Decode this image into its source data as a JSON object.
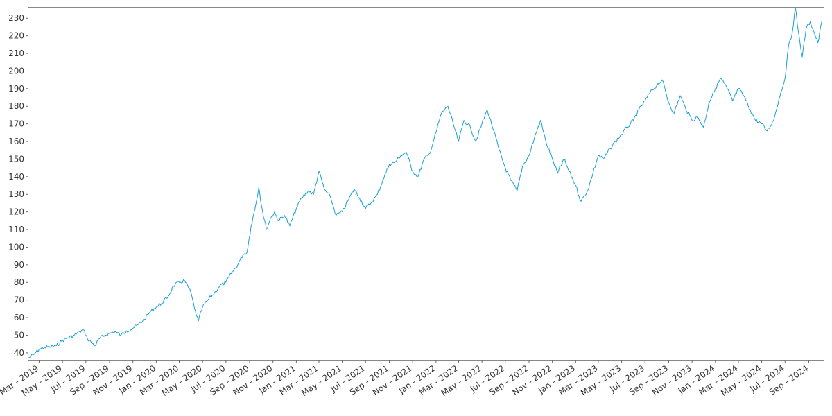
{
  "chart_data": {
    "type": "line",
    "title": "",
    "xlabel": "",
    "ylabel": "",
    "grid": false,
    "legend": "none",
    "line_color": "#1a9fd0",
    "xlim": [
      "2019-02-01",
      "2024-10-10"
    ],
    "ylim": [
      36,
      236
    ],
    "y_ticks": [
      40,
      50,
      60,
      70,
      80,
      90,
      100,
      110,
      120,
      130,
      140,
      150,
      160,
      170,
      180,
      190,
      200,
      210,
      220,
      230
    ],
    "x_ticks": [
      {
        "label": "Mar - 2019",
        "date": "2019-03-01"
      },
      {
        "label": "May - 2019",
        "date": "2019-05-01"
      },
      {
        "label": "Jul - 2019",
        "date": "2019-07-01"
      },
      {
        "label": "Sep - 2019",
        "date": "2019-09-01"
      },
      {
        "label": "Nov - 2019",
        "date": "2019-11-01"
      },
      {
        "label": "Jan - 2020",
        "date": "2020-01-01"
      },
      {
        "label": "Mar - 2020",
        "date": "2020-03-01"
      },
      {
        "label": "May - 2020",
        "date": "2020-05-01"
      },
      {
        "label": "Jul - 2020",
        "date": "2020-07-01"
      },
      {
        "label": "Sep - 2020",
        "date": "2020-09-01"
      },
      {
        "label": "Nov - 2020",
        "date": "2020-11-01"
      },
      {
        "label": "Jan - 2021",
        "date": "2021-01-01"
      },
      {
        "label": "Mar - 2021",
        "date": "2021-03-01"
      },
      {
        "label": "May - 2021",
        "date": "2021-05-01"
      },
      {
        "label": "Jul - 2021",
        "date": "2021-07-01"
      },
      {
        "label": "Sep - 2021",
        "date": "2021-09-01"
      },
      {
        "label": "Nov - 2021",
        "date": "2021-11-01"
      },
      {
        "label": "Jan - 2022",
        "date": "2022-01-01"
      },
      {
        "label": "Mar - 2022",
        "date": "2022-03-01"
      },
      {
        "label": "May - 2022",
        "date": "2022-05-01"
      },
      {
        "label": "Jul - 2022",
        "date": "2022-07-01"
      },
      {
        "label": "Sep - 2022",
        "date": "2022-09-01"
      },
      {
        "label": "Nov - 2022",
        "date": "2022-11-01"
      },
      {
        "label": "Jan - 2023",
        "date": "2023-01-01"
      },
      {
        "label": "Mar - 2023",
        "date": "2023-03-01"
      },
      {
        "label": "May - 2023",
        "date": "2023-05-01"
      },
      {
        "label": "Jul - 2023",
        "date": "2023-07-01"
      },
      {
        "label": "Sep - 2023",
        "date": "2023-09-01"
      },
      {
        "label": "Nov - 2023",
        "date": "2023-11-01"
      },
      {
        "label": "Jan - 2024",
        "date": "2024-01-01"
      },
      {
        "label": "Mar - 2024",
        "date": "2024-03-01"
      },
      {
        "label": "May - 2024",
        "date": "2024-05-01"
      },
      {
        "label": "Jul - 2024",
        "date": "2024-07-01"
      },
      {
        "label": "Sep - 2024",
        "date": "2024-09-01"
      }
    ],
    "series": [
      {
        "points": [
          [
            "2019-02-01",
            37
          ],
          [
            "2019-02-15",
            39
          ],
          [
            "2019-03-01",
            42
          ],
          [
            "2019-03-15",
            43
          ],
          [
            "2019-04-01",
            43.5
          ],
          [
            "2019-04-15",
            44
          ],
          [
            "2019-05-01",
            47
          ],
          [
            "2019-05-15",
            48.5
          ],
          [
            "2019-06-01",
            50
          ],
          [
            "2019-06-15",
            52
          ],
          [
            "2019-06-25",
            53
          ],
          [
            "2019-07-05",
            48
          ],
          [
            "2019-07-15",
            46
          ],
          [
            "2019-07-25",
            44
          ],
          [
            "2019-08-05",
            48
          ],
          [
            "2019-08-20",
            50
          ],
          [
            "2019-09-01",
            51
          ],
          [
            "2019-09-15",
            52
          ],
          [
            "2019-10-01",
            50
          ],
          [
            "2019-10-15",
            52.5
          ],
          [
            "2019-11-01",
            54
          ],
          [
            "2019-11-15",
            56
          ],
          [
            "2019-12-01",
            59
          ],
          [
            "2019-12-15",
            63
          ],
          [
            "2020-01-01",
            66
          ],
          [
            "2020-01-15",
            68
          ],
          [
            "2020-02-01",
            72
          ],
          [
            "2020-02-15",
            78
          ],
          [
            "2020-03-01",
            80
          ],
          [
            "2020-03-15",
            81
          ],
          [
            "2020-04-01",
            74
          ],
          [
            "2020-04-10",
            65
          ],
          [
            "2020-04-20",
            58
          ],
          [
            "2020-05-01",
            66
          ],
          [
            "2020-05-15",
            70
          ],
          [
            "2020-06-01",
            74
          ],
          [
            "2020-06-15",
            78
          ],
          [
            "2020-07-01",
            80
          ],
          [
            "2020-07-15",
            85
          ],
          [
            "2020-08-01",
            90
          ],
          [
            "2020-08-15",
            96
          ],
          [
            "2020-08-25",
            97
          ],
          [
            "2020-09-05",
            112
          ],
          [
            "2020-09-15",
            122
          ],
          [
            "2020-09-25",
            134
          ],
          [
            "2020-10-05",
            120
          ],
          [
            "2020-10-15",
            110
          ],
          [
            "2020-10-25",
            116
          ],
          [
            "2020-11-05",
            120
          ],
          [
            "2020-11-15",
            115
          ],
          [
            "2020-12-01",
            118
          ],
          [
            "2020-12-15",
            112
          ],
          [
            "2021-01-01",
            122
          ],
          [
            "2021-01-15",
            128
          ],
          [
            "2021-02-01",
            132
          ],
          [
            "2021-02-15",
            130
          ],
          [
            "2021-03-01",
            143
          ],
          [
            "2021-03-15",
            133
          ],
          [
            "2021-04-01",
            128
          ],
          [
            "2021-04-15",
            118
          ],
          [
            "2021-05-01",
            120
          ],
          [
            "2021-05-15",
            126
          ],
          [
            "2021-06-01",
            133
          ],
          [
            "2021-06-15",
            128
          ],
          [
            "2021-07-01",
            122
          ],
          [
            "2021-07-15",
            125
          ],
          [
            "2021-08-01",
            130
          ],
          [
            "2021-08-15",
            138
          ],
          [
            "2021-09-01",
            147
          ],
          [
            "2021-09-15",
            148
          ],
          [
            "2021-10-01",
            152
          ],
          [
            "2021-10-15",
            154
          ],
          [
            "2021-11-01",
            143
          ],
          [
            "2021-11-15",
            140
          ],
          [
            "2021-12-01",
            150
          ],
          [
            "2021-12-15",
            153
          ],
          [
            "2022-01-01",
            165
          ],
          [
            "2022-01-15",
            176
          ],
          [
            "2022-02-01",
            180
          ],
          [
            "2022-02-15",
            170
          ],
          [
            "2022-03-01",
            160
          ],
          [
            "2022-03-15",
            172
          ],
          [
            "2022-04-01",
            168
          ],
          [
            "2022-04-15",
            160
          ],
          [
            "2022-05-01",
            170
          ],
          [
            "2022-05-15",
            178
          ],
          [
            "2022-06-01",
            166
          ],
          [
            "2022-06-15",
            155
          ],
          [
            "2022-07-01",
            145
          ],
          [
            "2022-07-15",
            138
          ],
          [
            "2022-08-01",
            132
          ],
          [
            "2022-08-15",
            146
          ],
          [
            "2022-09-01",
            152
          ],
          [
            "2022-09-15",
            162
          ],
          [
            "2022-10-01",
            172
          ],
          [
            "2022-10-15",
            160
          ],
          [
            "2022-11-01",
            150
          ],
          [
            "2022-11-15",
            142
          ],
          [
            "2022-12-01",
            150
          ],
          [
            "2022-12-15",
            143
          ],
          [
            "2023-01-01",
            135
          ],
          [
            "2023-01-15",
            126
          ],
          [
            "2023-02-01",
            132
          ],
          [
            "2023-02-15",
            142
          ],
          [
            "2023-03-01",
            152
          ],
          [
            "2023-03-15",
            150
          ],
          [
            "2023-04-01",
            156
          ],
          [
            "2023-04-15",
            160
          ],
          [
            "2023-05-01",
            164
          ],
          [
            "2023-05-15",
            168
          ],
          [
            "2023-06-01",
            172
          ],
          [
            "2023-06-15",
            178
          ],
          [
            "2023-07-01",
            183
          ],
          [
            "2023-07-15",
            188
          ],
          [
            "2023-08-01",
            192
          ],
          [
            "2023-08-15",
            195
          ],
          [
            "2023-09-01",
            182
          ],
          [
            "2023-09-15",
            176
          ],
          [
            "2023-10-01",
            186
          ],
          [
            "2023-10-15",
            179
          ],
          [
            "2023-11-01",
            172
          ],
          [
            "2023-11-15",
            174
          ],
          [
            "2023-12-01",
            168
          ],
          [
            "2023-12-15",
            182
          ],
          [
            "2024-01-01",
            190
          ],
          [
            "2024-01-15",
            196
          ],
          [
            "2024-02-01",
            190
          ],
          [
            "2024-02-15",
            183
          ],
          [
            "2024-03-01",
            190
          ],
          [
            "2024-03-15",
            186
          ],
          [
            "2024-04-01",
            178
          ],
          [
            "2024-04-15",
            172
          ],
          [
            "2024-05-01",
            170
          ],
          [
            "2024-05-15",
            166
          ],
          [
            "2024-06-01",
            172
          ],
          [
            "2024-06-15",
            184
          ],
          [
            "2024-07-01",
            196
          ],
          [
            "2024-07-10",
            214
          ],
          [
            "2024-07-20",
            222
          ],
          [
            "2024-07-28",
            236
          ],
          [
            "2024-08-05",
            222
          ],
          [
            "2024-08-15",
            208
          ],
          [
            "2024-08-25",
            224
          ],
          [
            "2024-09-05",
            228
          ],
          [
            "2024-09-15",
            222
          ],
          [
            "2024-09-25",
            216
          ],
          [
            "2024-10-05",
            228
          ]
        ]
      }
    ]
  }
}
